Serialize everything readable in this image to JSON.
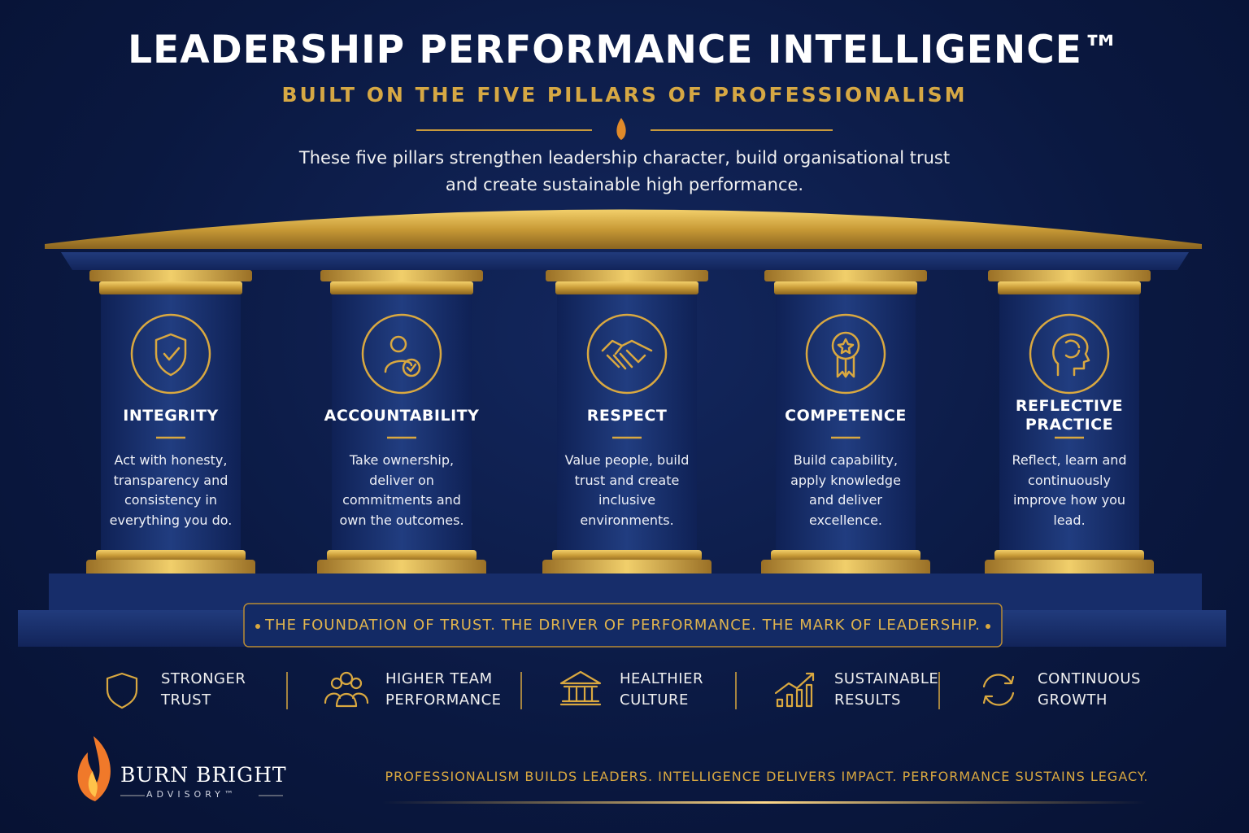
{
  "header": {
    "title": "LEADERSHIP PERFORMANCE INTELLIGENCE™",
    "subtitle": "BUILT ON THE FIVE PILLARS OF PROFESSIONALISM",
    "intro": [
      "These five pillars strengthen leadership character, build organisational trust",
      "and create sustainable high performance."
    ]
  },
  "pillars": [
    {
      "title": "INTEGRITY",
      "description": "Act with honesty, transparency and consistency in everything you do."
    },
    {
      "title": "ACCOUNTABILITY",
      "description": "Take ownership, deliver on commitments and own the outcomes."
    },
    {
      "title": "RESPECT",
      "description": "Value people, build trust and create inclusive environments."
    },
    {
      "title": "COMPETENCE",
      "description": "Build capability, apply knowledge and deliver excellence."
    },
    {
      "title": "REFLECTIVE PRACTICE",
      "description": "Reflect, learn and continuously improve how you lead."
    }
  ],
  "banner": "THE FOUNDATION OF TRUST. THE DRIVER OF PERFORMANCE. THE MARK OF LEADERSHIP.",
  "benefits": [
    "STRONGER TRUST",
    "HIGHER TEAM PERFORMANCE",
    "HEALTHIER CULTURE",
    "SUSTAINABLE RESULTS",
    "CONTINUOUS GROWTH"
  ],
  "logo": {
    "name": "BURN BRIGHT",
    "tagline": "ADVISORY™"
  },
  "footer": "PROFESSIONALISM BUILDS LEADERS. INTELLIGENCE DELIVERS IMPACT. PERFORMANCE SUSTAINS LEGACY."
}
